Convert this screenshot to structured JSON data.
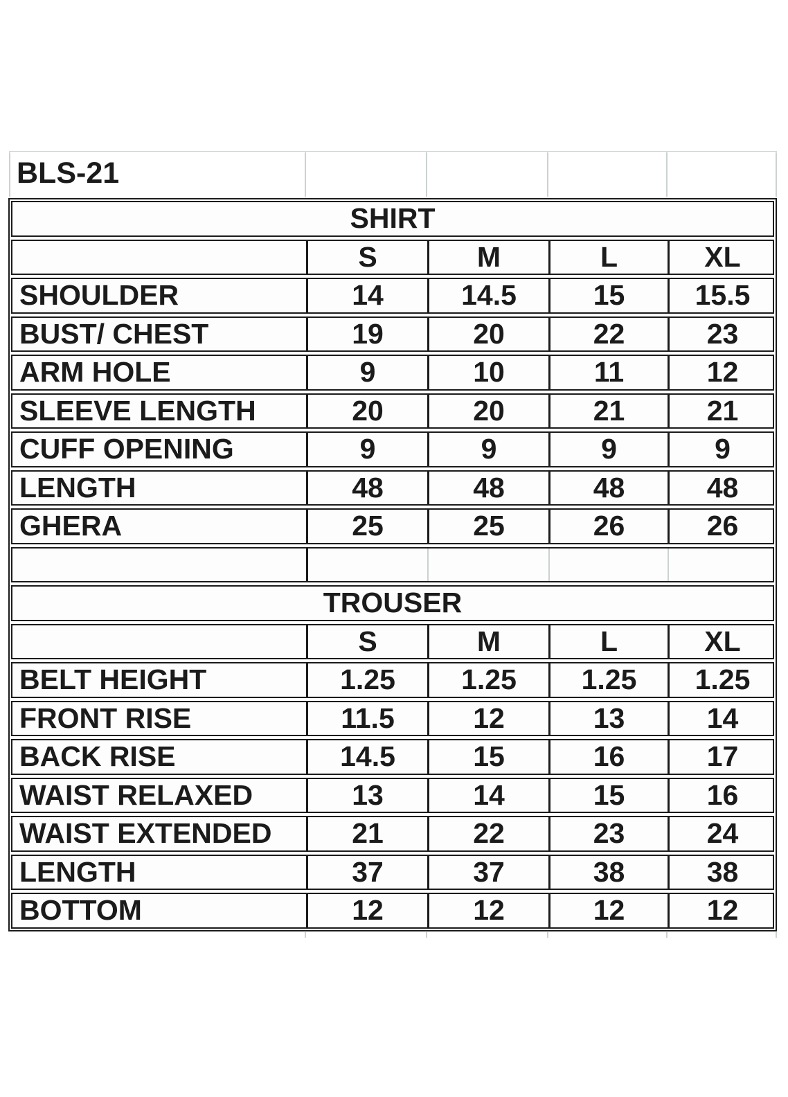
{
  "page": {
    "style_code": "BLS-21"
  },
  "sizes": [
    "S",
    "M",
    "L",
    "XL"
  ],
  "shirt": {
    "title": "SHIRT",
    "rows": [
      {
        "label": "SHOULDER",
        "values": [
          "14",
          "14.5",
          "15",
          "15.5"
        ]
      },
      {
        "label": "BUST/ CHEST",
        "values": [
          "19",
          "20",
          "22",
          "23"
        ]
      },
      {
        "label": "ARM HOLE",
        "values": [
          "9",
          "10",
          "11",
          "12"
        ]
      },
      {
        "label": "SLEEVE LENGTH",
        "values": [
          "20",
          "20",
          "21",
          "21"
        ]
      },
      {
        "label": "CUFF OPENING",
        "values": [
          "9",
          "9",
          "9",
          "9"
        ]
      },
      {
        "label": "LENGTH",
        "values": [
          "48",
          "48",
          "48",
          "48"
        ]
      },
      {
        "label": "GHERA",
        "values": [
          "25",
          "25",
          "26",
          "26"
        ]
      }
    ]
  },
  "trouser": {
    "title": "TROUSER",
    "rows": [
      {
        "label": "BELT HEIGHT",
        "values": [
          "1.25",
          "1.25",
          "1.25",
          "1.25"
        ]
      },
      {
        "label": "FRONT RISE",
        "values": [
          "11.5",
          "12",
          "13",
          "14"
        ]
      },
      {
        "label": "BACK RISE",
        "values": [
          "14.5",
          "15",
          "16",
          "17"
        ]
      },
      {
        "label": "WAIST RELAXED",
        "values": [
          "13",
          "14",
          "15",
          "16"
        ]
      },
      {
        "label": "WAIST EXTENDED",
        "values": [
          "21",
          "22",
          "23",
          "24"
        ]
      },
      {
        "label": "LENGTH",
        "values": [
          "37",
          "37",
          "38",
          "38"
        ]
      },
      {
        "label": "BOTTOM",
        "values": [
          "12",
          "12",
          "12",
          "12"
        ]
      }
    ]
  },
  "colors": {
    "ink": "#1b1b1b",
    "faint_gridline": "#ccd2cd",
    "background": "#ffffff"
  }
}
